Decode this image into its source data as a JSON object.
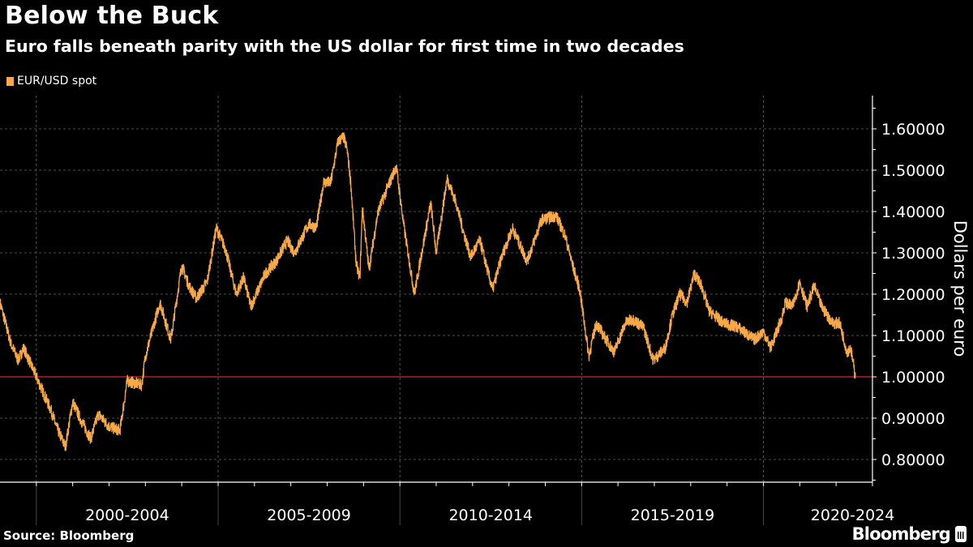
{
  "title": "Below the Buck",
  "subtitle": "Euro falls beneath parity with the US dollar for first time in two decades",
  "source": "Source: Bloomberg",
  "logo": "Bloomberg",
  "colors": {
    "series": "#f8a845",
    "parity_line": "#d8262b",
    "background": "#000000",
    "grid": "#666666"
  },
  "chart_data": {
    "type": "line",
    "title": "Below the Buck",
    "ylabel": "Dollars per euro",
    "xlabel": "",
    "legend": {
      "entries": [
        "EUR/USD spot"
      ],
      "placement": "top-left"
    },
    "x_tick_labels": [
      "2000-2004",
      "2005-2009",
      "2010-2014",
      "2015-2019",
      "2020-2024"
    ],
    "y_ticks": [
      0.8,
      0.9,
      1.0,
      1.1,
      1.2,
      1.3,
      1.4,
      1.5,
      1.6
    ],
    "y_tick_labels": [
      "0.80000",
      "0.90000",
      "1.00000",
      "1.10000",
      "1.20000",
      "1.30000",
      "1.40000",
      "1.50000",
      "1.60000"
    ],
    "xlim": [
      1999.0,
      2023.0
    ],
    "ylim": [
      0.745,
      1.68
    ],
    "y_axis_side": "right",
    "grid": true,
    "reference_line": {
      "value": 1.0
    },
    "series": [
      {
        "name": "EUR/USD spot",
        "points": [
          [
            1999.0,
            1.18
          ],
          [
            1999.3,
            1.08
          ],
          [
            1999.5,
            1.04
          ],
          [
            1999.65,
            1.07
          ],
          [
            1999.85,
            1.03
          ],
          [
            2000.0,
            1.0
          ],
          [
            2000.2,
            0.96
          ],
          [
            2000.4,
            0.92
          ],
          [
            2000.55,
            0.88
          ],
          [
            2000.8,
            0.83
          ],
          [
            2001.0,
            0.94
          ],
          [
            2001.2,
            0.9
          ],
          [
            2001.5,
            0.85
          ],
          [
            2001.7,
            0.91
          ],
          [
            2002.0,
            0.88
          ],
          [
            2002.3,
            0.87
          ],
          [
            2002.5,
            0.99
          ],
          [
            2002.9,
            0.98
          ],
          [
            2003.0,
            1.05
          ],
          [
            2003.4,
            1.18
          ],
          [
            2003.6,
            1.12
          ],
          [
            2003.7,
            1.09
          ],
          [
            2004.0,
            1.27
          ],
          [
            2004.2,
            1.22
          ],
          [
            2004.4,
            1.19
          ],
          [
            2004.7,
            1.23
          ],
          [
            2004.95,
            1.36
          ],
          [
            2005.2,
            1.31
          ],
          [
            2005.5,
            1.2
          ],
          [
            2005.7,
            1.24
          ],
          [
            2005.9,
            1.17
          ],
          [
            2006.3,
            1.25
          ],
          [
            2006.6,
            1.28
          ],
          [
            2006.9,
            1.33
          ],
          [
            2007.1,
            1.3
          ],
          [
            2007.5,
            1.37
          ],
          [
            2007.7,
            1.36
          ],
          [
            2007.9,
            1.47
          ],
          [
            2008.1,
            1.47
          ],
          [
            2008.3,
            1.57
          ],
          [
            2008.45,
            1.58
          ],
          [
            2008.55,
            1.55
          ],
          [
            2008.65,
            1.47
          ],
          [
            2008.8,
            1.27
          ],
          [
            2008.9,
            1.24
          ],
          [
            2008.97,
            1.41
          ],
          [
            2009.15,
            1.26
          ],
          [
            2009.4,
            1.4
          ],
          [
            2009.9,
            1.51
          ],
          [
            2010.1,
            1.37
          ],
          [
            2010.4,
            1.2
          ],
          [
            2010.6,
            1.3
          ],
          [
            2010.85,
            1.42
          ],
          [
            2011.0,
            1.3
          ],
          [
            2011.3,
            1.48
          ],
          [
            2011.55,
            1.42
          ],
          [
            2011.75,
            1.35
          ],
          [
            2011.95,
            1.29
          ],
          [
            2012.2,
            1.33
          ],
          [
            2012.55,
            1.21
          ],
          [
            2012.8,
            1.29
          ],
          [
            2013.1,
            1.36
          ],
          [
            2013.5,
            1.28
          ],
          [
            2013.9,
            1.38
          ],
          [
            2014.3,
            1.39
          ],
          [
            2014.55,
            1.34
          ],
          [
            2014.75,
            1.27
          ],
          [
            2014.95,
            1.21
          ],
          [
            2015.2,
            1.05
          ],
          [
            2015.4,
            1.13
          ],
          [
            2015.6,
            1.1
          ],
          [
            2015.9,
            1.06
          ],
          [
            2016.2,
            1.13
          ],
          [
            2016.4,
            1.14
          ],
          [
            2016.7,
            1.12
          ],
          [
            2016.97,
            1.04
          ],
          [
            2017.3,
            1.07
          ],
          [
            2017.5,
            1.15
          ],
          [
            2017.7,
            1.2
          ],
          [
            2017.9,
            1.18
          ],
          [
            2018.1,
            1.25
          ],
          [
            2018.3,
            1.22
          ],
          [
            2018.5,
            1.16
          ],
          [
            2018.9,
            1.13
          ],
          [
            2019.3,
            1.12
          ],
          [
            2019.75,
            1.09
          ],
          [
            2020.0,
            1.11
          ],
          [
            2020.2,
            1.07
          ],
          [
            2020.5,
            1.14
          ],
          [
            2020.6,
            1.18
          ],
          [
            2020.8,
            1.17
          ],
          [
            2021.0,
            1.23
          ],
          [
            2021.2,
            1.17
          ],
          [
            2021.4,
            1.22
          ],
          [
            2021.6,
            1.17
          ],
          [
            2021.9,
            1.13
          ],
          [
            2022.1,
            1.13
          ],
          [
            2022.3,
            1.06
          ],
          [
            2022.4,
            1.07
          ],
          [
            2022.53,
            1.0
          ]
        ]
      }
    ]
  }
}
